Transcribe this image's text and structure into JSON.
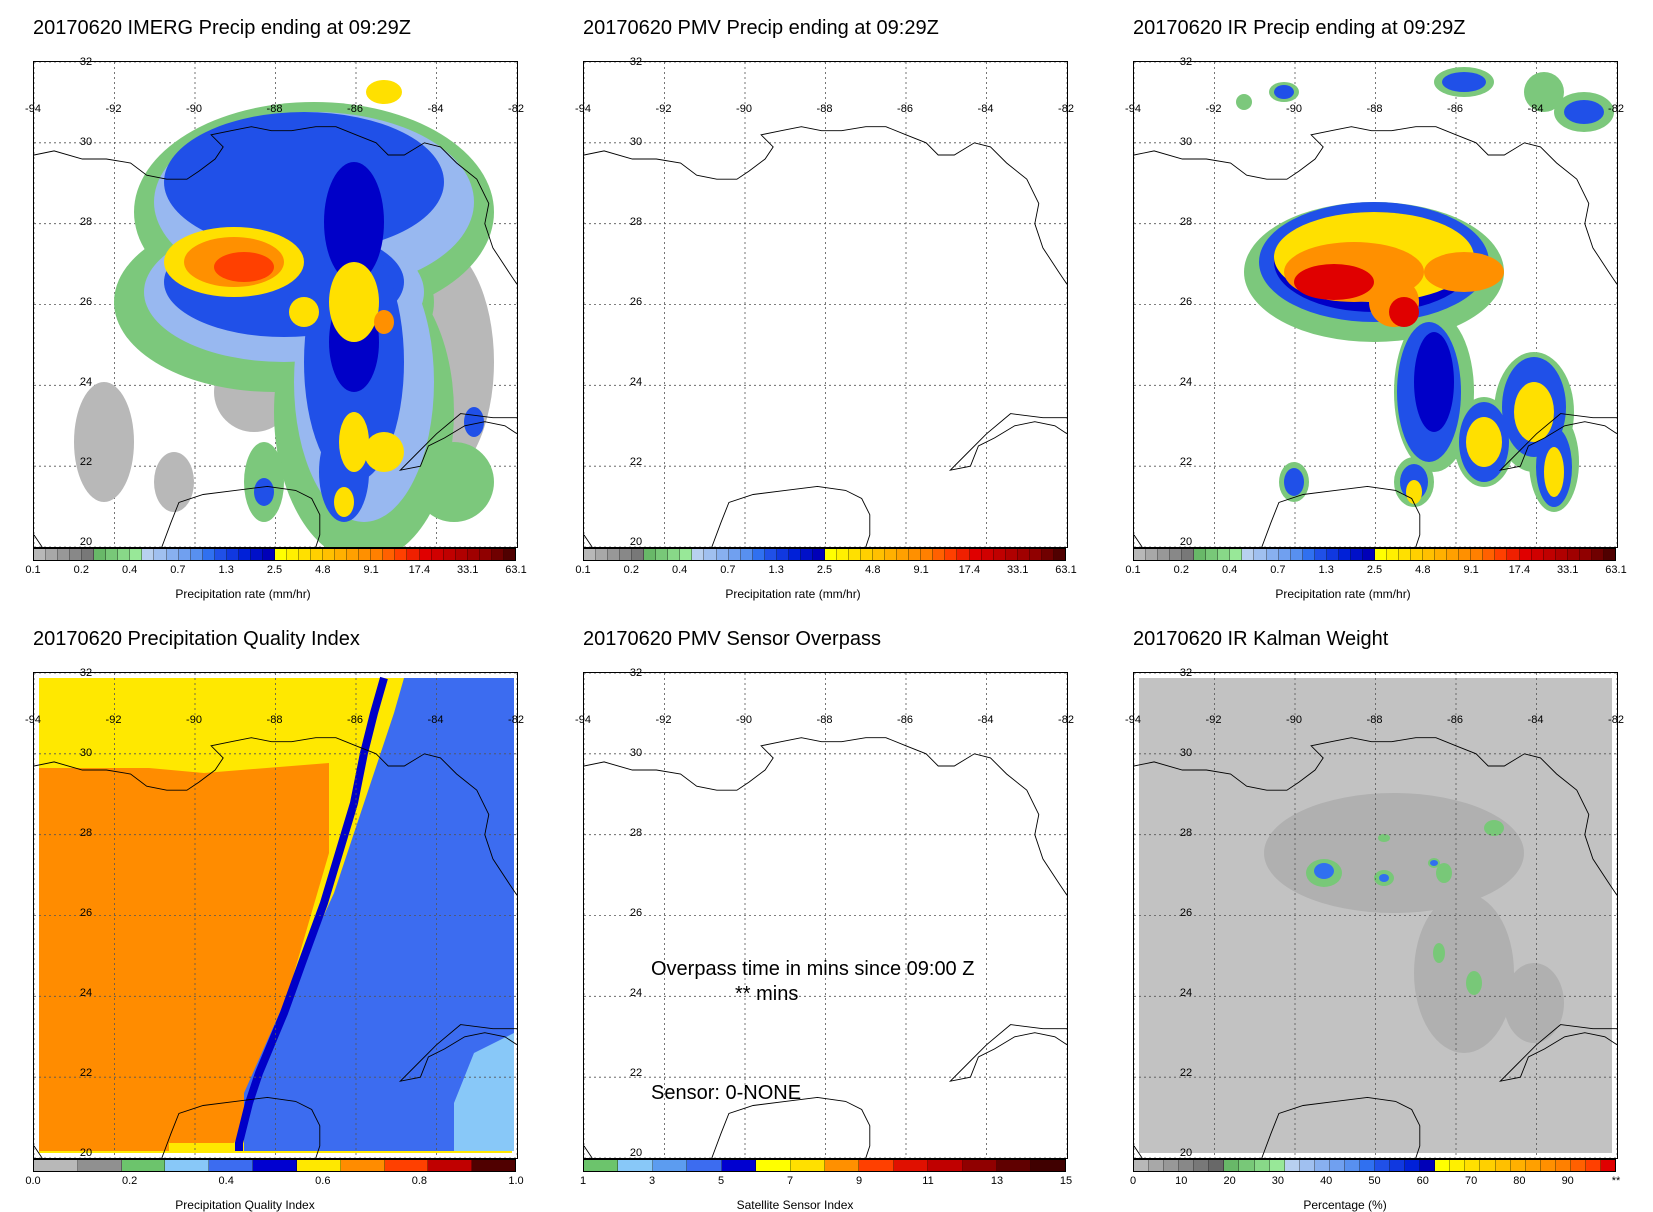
{
  "panels": [
    {
      "title": "20170620 IMERG Precip ending at 09:29Z",
      "kind": "precip_imerg",
      "colorbar_caption": "Precipitation rate (mm/hr)"
    },
    {
      "title": "20170620 PMV Precip ending at 09:29Z",
      "kind": "blank",
      "colorbar_caption": "Precipitation rate (mm/hr)"
    },
    {
      "title": "20170620 IR Precip ending at 09:29Z",
      "kind": "precip_ir",
      "colorbar_caption": "Precipitation rate (mm/hr)"
    },
    {
      "title": "20170620 Precipitation Quality Index",
      "kind": "quality",
      "colorbar_caption": "Precipitation Quality Index"
    },
    {
      "title": "20170620 PMV Sensor Overpass",
      "kind": "blank",
      "colorbar_caption": "Satellite Sensor Index",
      "overlay": {
        "line1": "Overpass time in mins since 09:00 Z",
        "line2": "** mins",
        "sensor": "Sensor:   0-NONE"
      }
    },
    {
      "title": "20170620 IR Kalman Weight",
      "kind": "kalman",
      "colorbar_caption": "Percentage (%)"
    }
  ],
  "map_axes": {
    "lon_labels": [
      "-94",
      "-92",
      "-90",
      "-88",
      "-86",
      "-84",
      "-82"
    ],
    "lat_labels": [
      "32",
      "30",
      "28",
      "26",
      "24",
      "22",
      "20"
    ]
  },
  "colorbars": {
    "precip": {
      "ticks": [
        "0.1",
        "0.2",
        "0.4",
        "0.7",
        "1.3",
        "2.5",
        "4.8",
        "9.1",
        "17.4",
        "33.1",
        "63.1"
      ],
      "colors": [
        "#b8b8b8",
        "#a8a8a8",
        "#989898",
        "#888888",
        "#787878",
        "#68b868",
        "#78c878",
        "#88d888",
        "#98e898",
        "#b8d0f0",
        "#a0c0f0",
        "#88b0f0",
        "#70a0f0",
        "#5890f0",
        "#3070f0",
        "#2050e8",
        "#1038e0",
        "#0020d8",
        "#0010c8",
        "#0000b8",
        "#ffff00",
        "#fff000",
        "#ffe000",
        "#ffd000",
        "#ffc000",
        "#ffb000",
        "#ffa000",
        "#ff9000",
        "#ff8000",
        "#ff6000",
        "#ff4000",
        "#f02000",
        "#e00000",
        "#d00000",
        "#c00000",
        "#b00000",
        "#a00000",
        "#900000",
        "#700000",
        "#500000"
      ]
    },
    "quality": {
      "ticks": [
        "0.0",
        "0.2",
        "0.4",
        "0.6",
        "0.8",
        "1.0"
      ],
      "colors": [
        "#b8b8b8",
        "#909090",
        "#6cc46c",
        "#88c8f8",
        "#3c6cf0",
        "#0000d0",
        "#ffe800",
        "#ff8c00",
        "#ff4000",
        "#c00000",
        "#500000"
      ]
    },
    "sensor": {
      "ticks": [
        "1",
        "3",
        "5",
        "7",
        "9",
        "11",
        "13",
        "15"
      ],
      "colors": [
        "#6cc46c",
        "#88c8f8",
        "#5c9cf0",
        "#3c6cf0",
        "#0000d0",
        "#ffff00",
        "#ffe000",
        "#ff9000",
        "#ff4000",
        "#e01000",
        "#c00000",
        "#900000",
        "#600000",
        "#400000"
      ]
    },
    "percentage": {
      "ticks": [
        "0",
        "10",
        "20",
        "30",
        "40",
        "50",
        "60",
        "70",
        "80",
        "90",
        "**"
      ],
      "colors": [
        "#b8b8b8",
        "#a8a8a8",
        "#989898",
        "#888888",
        "#787878",
        "#686868",
        "#68b868",
        "#78c878",
        "#88d888",
        "#98e898",
        "#b8d0f0",
        "#a0c0f0",
        "#88b0f0",
        "#70a0f0",
        "#5890f0",
        "#3070f0",
        "#2050e8",
        "#1038e0",
        "#0020d8",
        "#0000b8",
        "#ffff00",
        "#fff000",
        "#ffe000",
        "#ffd000",
        "#ffc000",
        "#ffb000",
        "#ffa000",
        "#ff9000",
        "#ff8000",
        "#ff6000",
        "#ff4000",
        "#e00000"
      ]
    }
  },
  "colors": {
    "coast": "#000000",
    "grid": "#555555",
    "kalman_background": "#c2c2c2"
  }
}
